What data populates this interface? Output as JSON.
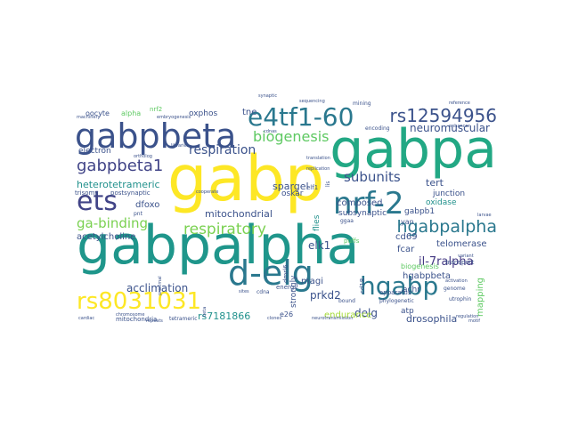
{
  "word_cloud": {
    "words": [
      {
        "text": "gabpalpha",
        "color": "#1f968b"
      },
      {
        "text": "gabp",
        "color": "#fde725"
      },
      {
        "text": "gabpa",
        "color": "#22a884"
      },
      {
        "text": "gabpbeta",
        "color": "#3b528b"
      },
      {
        "text": "e4tf1-60",
        "color": "#2a788e"
      },
      {
        "text": "nrf-2",
        "color": "#2a788e"
      },
      {
        "text": "ets",
        "color": "#414487"
      },
      {
        "text": "d-elg",
        "color": "#2a788e"
      },
      {
        "text": "hgabp",
        "color": "#2a788e"
      },
      {
        "text": "rs8031031",
        "color": "#fde725"
      },
      {
        "text": "rs12594956",
        "color": "#3b528b"
      },
      {
        "text": "hgabpalpha",
        "color": "#2a788e"
      },
      {
        "text": "gabpbeta1",
        "color": "#414487"
      },
      {
        "text": "biogenesis",
        "color": "#5ec962"
      },
      {
        "text": "respiratory",
        "color": "#7ad151"
      },
      {
        "text": "ga-binding",
        "color": "#7ad151"
      },
      {
        "text": "respiration",
        "color": "#3b528b"
      },
      {
        "text": "subunits",
        "color": "#3b528b"
      },
      {
        "text": "neuromuscular",
        "color": "#3b528b"
      },
      {
        "text": "mitochondrial",
        "color": "#3b528b"
      },
      {
        "text": "acclimation",
        "color": "#3b528b"
      },
      {
        "text": "heterotetrameric",
        "color": "#21918c"
      },
      {
        "text": "il-7ralpha",
        "color": "#443983"
      },
      {
        "text": "elk1",
        "color": "#3b528b"
      },
      {
        "text": "delg",
        "color": "#3b528b"
      },
      {
        "text": "prkd2",
        "color": "#3b528b"
      },
      {
        "text": "rs7181866",
        "color": "#21918c"
      },
      {
        "text": "endurance",
        "color": "#a5db36"
      },
      {
        "text": "drosophila",
        "color": "#3b528b"
      },
      {
        "text": "telomerase",
        "color": "#3b528b"
      },
      {
        "text": "composed",
        "color": "#3b528b"
      },
      {
        "text": "spargel",
        "color": "#3b528b"
      },
      {
        "text": "tert",
        "color": "#3b528b"
      },
      {
        "text": "junction",
        "color": "#3b528b"
      },
      {
        "text": "oxidase",
        "color": "#21918c"
      },
      {
        "text": "gabpb1",
        "color": "#3b528b"
      },
      {
        "text": "cd69",
        "color": "#3b528b"
      },
      {
        "text": "fcar",
        "color": "#3b528b"
      },
      {
        "text": "hgabpbeta",
        "color": "#3b528b"
      },
      {
        "text": "magi",
        "color": "#3b528b"
      },
      {
        "text": "subsynaptic",
        "color": "#3b528b"
      },
      {
        "text": "acetylcholine",
        "color": "#3b528b"
      },
      {
        "text": "dfoxo",
        "color": "#3b528b"
      },
      {
        "text": "tne",
        "color": "#3b528b"
      },
      {
        "text": "oxphos",
        "color": "#3b528b"
      },
      {
        "text": "oocyte",
        "color": "#3b528b"
      },
      {
        "text": "alpha",
        "color": "#5ec962"
      },
      {
        "text": "nrf2",
        "color": "#5ec962"
      },
      {
        "text": "electron",
        "color": "#3b528b"
      },
      {
        "text": "trisomy",
        "color": "#3b528b"
      },
      {
        "text": "postsynaptic",
        "color": "#3b528b"
      },
      {
        "text": "oskar",
        "color": "#3b528b"
      },
      {
        "text": "flies",
        "color": "#21918c"
      },
      {
        "text": "achr",
        "color": "#3b528b"
      },
      {
        "text": "atp",
        "color": "#3b528b"
      },
      {
        "text": "e26",
        "color": "#3b528b"
      },
      {
        "text": "energy",
        "color": "#3b528b"
      },
      {
        "text": "mitochondria",
        "color": "#3b528b"
      },
      {
        "text": "tetrameric",
        "color": "#3b528b"
      },
      {
        "text": "yan",
        "color": "#3b528b"
      },
      {
        "text": "apparatus",
        "color": "#3b528b"
      },
      {
        "text": "mapping",
        "color": "#5ec962"
      },
      {
        "text": "transport",
        "color": "#3b528b"
      },
      {
        "text": "genome",
        "color": "#3b528b"
      },
      {
        "text": "utrophin",
        "color": "#3b528b"
      },
      {
        "text": "mining",
        "color": "#3b528b"
      },
      {
        "text": "strongly",
        "color": "#3b528b"
      },
      {
        "text": "biogenesis",
        "color": "#5ec962"
      },
      {
        "text": "bound",
        "color": "#3b528b"
      },
      {
        "text": "cdna",
        "color": "#3b528b"
      },
      {
        "text": "cdnas",
        "color": "#3b528b"
      },
      {
        "text": "puffs",
        "color": "#5ec962"
      },
      {
        "text": "encoding",
        "color": "#3b528b"
      },
      {
        "text": "ggaa",
        "color": "#3b528b"
      },
      {
        "text": "lis",
        "color": "#3b528b"
      },
      {
        "text": "elf1",
        "color": "#3b528b"
      },
      {
        "text": "dmrl6",
        "color": "#3b528b"
      },
      {
        "text": "cd18",
        "color": "#3b528b"
      },
      {
        "text": "pnt",
        "color": "#3b528b"
      },
      {
        "text": "sites",
        "color": "#3b528b"
      },
      {
        "text": "phylogenetic",
        "color": "#3b528b"
      },
      {
        "text": "translation",
        "color": "#3b528b"
      },
      {
        "text": "replication",
        "color": "#3b528b"
      },
      {
        "text": "synaptic",
        "color": "#3b528b"
      },
      {
        "text": "beta",
        "color": "#3b528b"
      },
      {
        "text": "repeats",
        "color": "#3b528b"
      },
      {
        "text": "clones",
        "color": "#3b528b"
      },
      {
        "text": "neurotransmission",
        "color": "#3b528b"
      },
      {
        "text": "embryogenesis",
        "color": "#3b528b"
      },
      {
        "text": "machinery",
        "color": "#3b528b"
      },
      {
        "text": "cooperate",
        "color": "#3b528b"
      },
      {
        "text": "libraries",
        "color": "#3b528b"
      },
      {
        "text": "sequencing",
        "color": "#3b528b"
      },
      {
        "text": "larvae",
        "color": "#3b528b"
      },
      {
        "text": "motif",
        "color": "#3b528b"
      },
      {
        "text": "chromosome",
        "color": "#3b528b"
      },
      {
        "text": "cardiac",
        "color": "#3b528b"
      },
      {
        "text": "proximal",
        "color": "#3b528b"
      },
      {
        "text": "regulation",
        "color": "#3b528b"
      },
      {
        "text": "activation",
        "color": "#3b528b"
      },
      {
        "text": "reference",
        "color": "#3b528b"
      },
      {
        "text": "ortholog",
        "color": "#3b528b"
      },
      {
        "text": "variant",
        "color": "#3b528b"
      },
      {
        "text": "enhancer",
        "color": "#3b528b"
      }
    ]
  }
}
